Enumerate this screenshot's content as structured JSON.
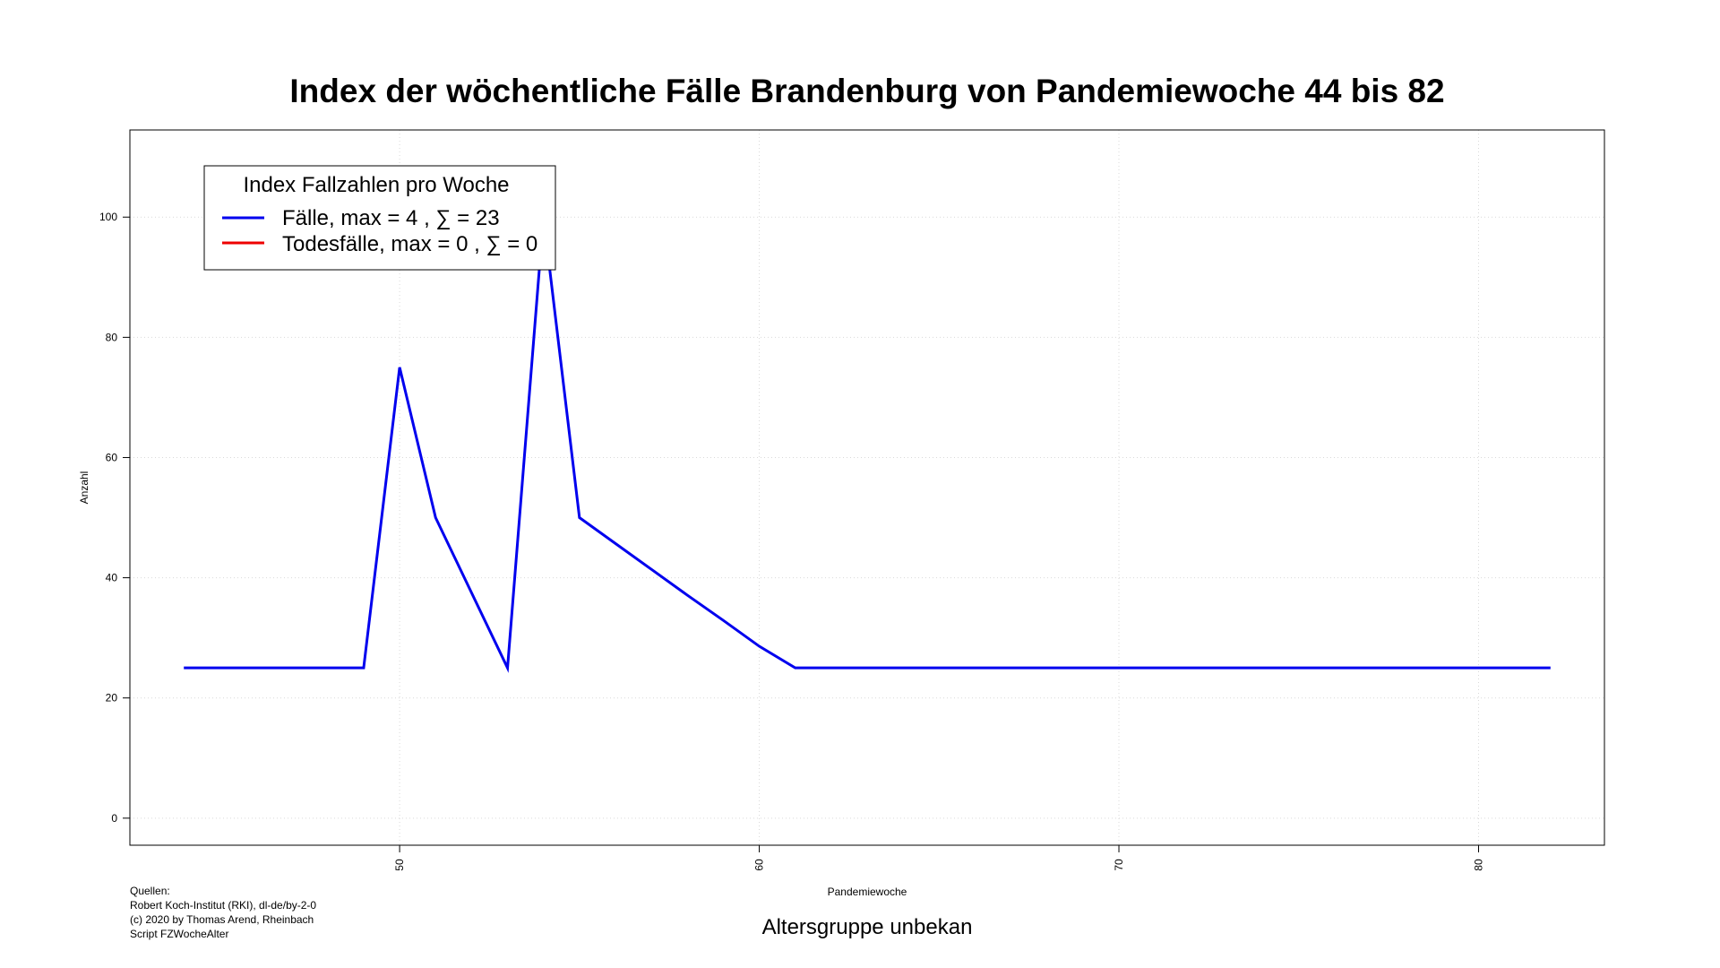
{
  "chart_data": {
    "type": "line",
    "title": "Index der wöchentliche Fälle Brandenburg von Pandemiewoche 44 bis 82",
    "xlabel": "Pandemiewoche",
    "ylabel": "Anzahl",
    "subtitle": "Altersgruppe unbekan",
    "xlim": [
      42.5,
      83.5
    ],
    "ylim": [
      -4.5,
      114.5
    ],
    "x_ticks": [
      50,
      60,
      70,
      80
    ],
    "y_ticks": [
      0,
      20,
      40,
      60,
      80,
      100
    ],
    "grid": true,
    "legend_title": "Index Fallzahlen pro Woche",
    "legend_position": "top-left",
    "series": [
      {
        "name": "Fälle, max = 4 ,  ∑  = 23",
        "color": "#0000ee",
        "x": [
          44,
          45,
          46,
          47,
          48,
          49,
          50,
          51,
          52,
          53,
          54,
          55,
          56,
          57,
          58,
          59,
          60,
          61,
          62,
          63,
          64,
          65,
          66,
          67,
          68,
          69,
          70,
          71,
          72,
          73,
          74,
          75,
          76,
          77,
          78,
          79,
          80,
          81,
          82
        ],
        "values": [
          25,
          25,
          25,
          25,
          25,
          25,
          75,
          50,
          37.5,
          25,
          100,
          50,
          45.7,
          41.4,
          37.1,
          32.9,
          28.6,
          25,
          25,
          25,
          25,
          25,
          25,
          25,
          25,
          25,
          25,
          25,
          25,
          25,
          25,
          25,
          25,
          25,
          25,
          25,
          25,
          25,
          25
        ]
      },
      {
        "name": "Todesfälle, max = 0 ,  ∑  = 0",
        "color": "#ee0000",
        "x": [],
        "values": []
      }
    ],
    "source_lines": [
      "Quellen:",
      "Robert Koch-Institut (RKI), dl-de/by-2-0",
      "(c) 2020 by Thomas Arend, Rheinbach",
      "Script FZWocheAlter"
    ]
  }
}
